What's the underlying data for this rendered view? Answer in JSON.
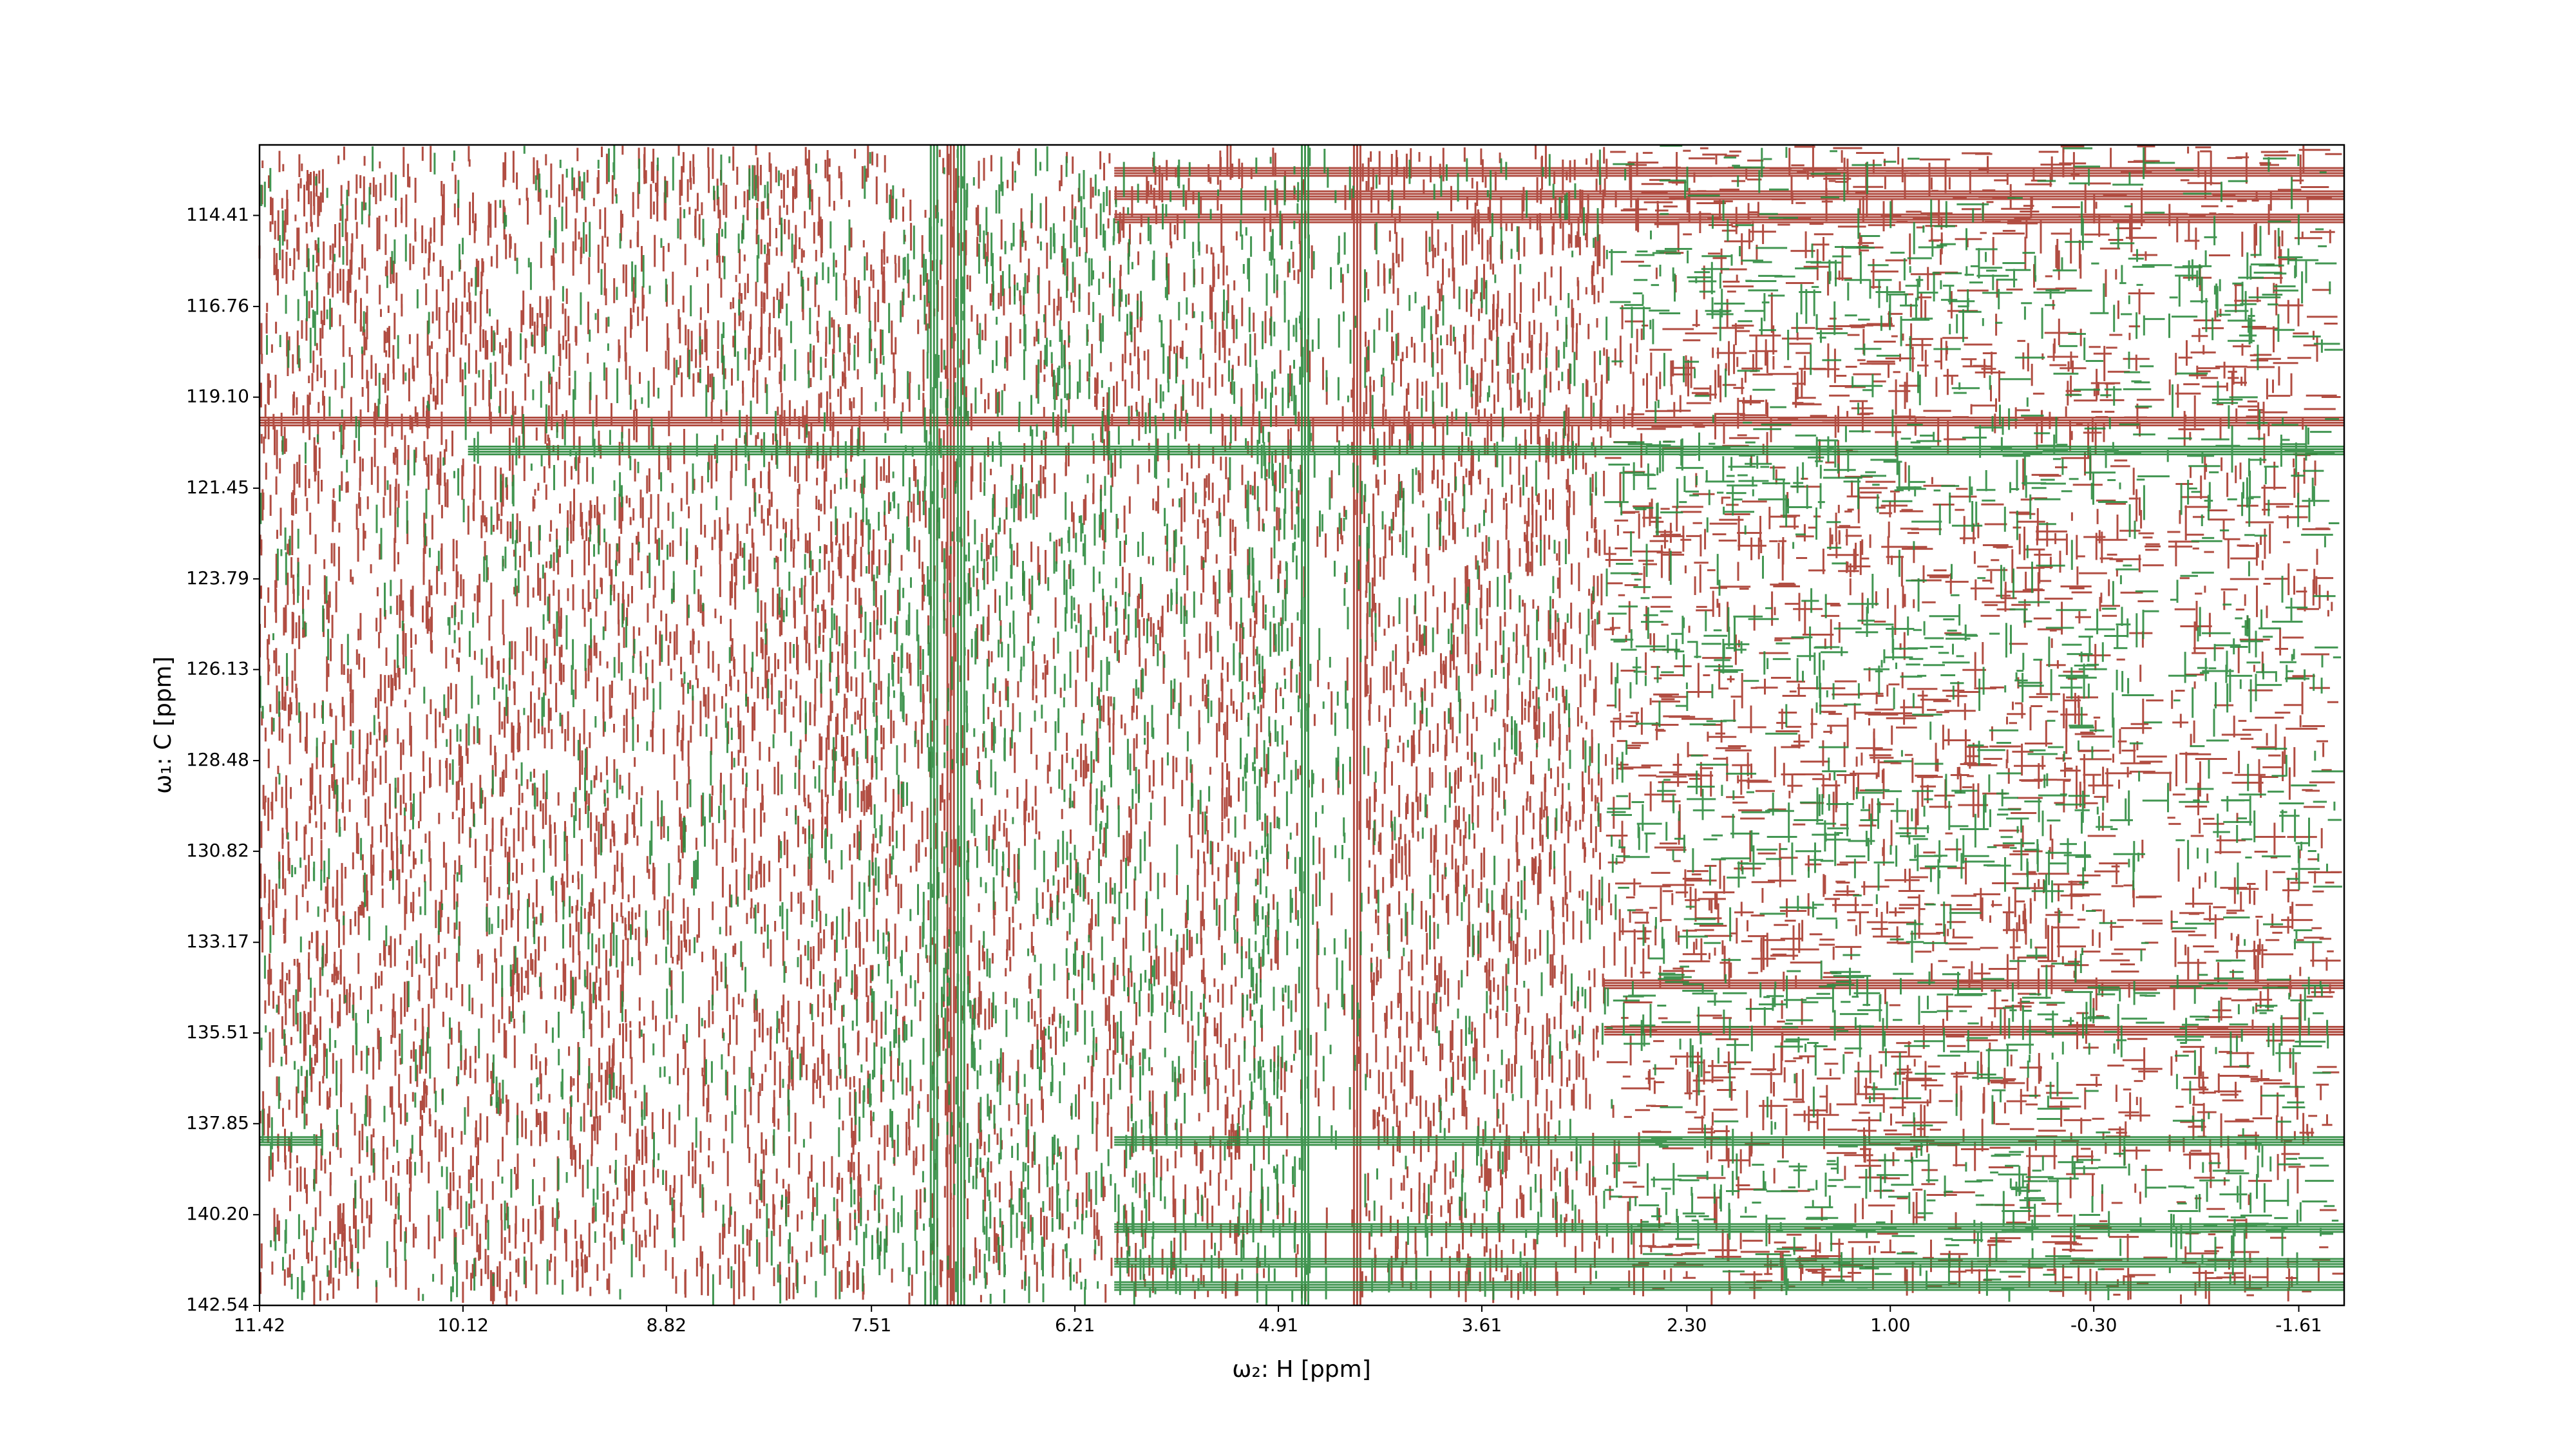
{
  "chart_data": {
    "type": "contour",
    "x_label": "ω₂: H [ppm]",
    "y_label": "ω₁: C [ppm]",
    "xlim": [
      11.42,
      -1.9
    ],
    "ylim": [
      142.54,
      112.59
    ],
    "xticks": [
      11.42,
      10.12,
      8.82,
      7.51,
      6.21,
      4.91,
      3.61,
      {
        "value": 2.3,
        "label": "2.30"
      },
      {
        "value": 1,
        "label": "1.00"
      },
      {
        "value": -0.3,
        "label": "-0.30"
      },
      -1.61
    ],
    "yticks": [
      114.41,
      116.76,
      {
        "value": 119.1,
        "label": "119.10"
      },
      121.45,
      123.79,
      126.13,
      128.48,
      130.82,
      133.17,
      135.51,
      137.85,
      {
        "value": 140.2,
        "label": "140.20"
      },
      142.54
    ],
    "positive_color": "#a93a2e",
    "negative_color": "#2e8b3f"
  }
}
